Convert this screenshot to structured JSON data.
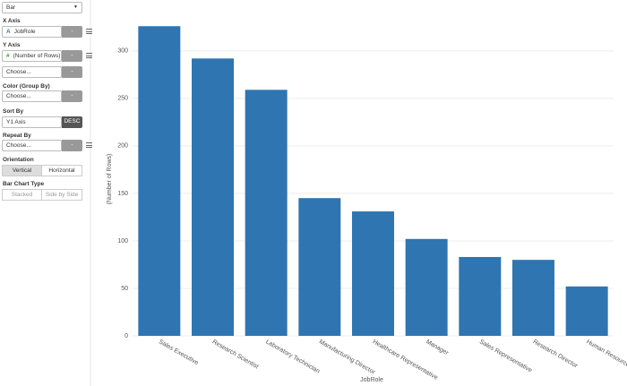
{
  "panel": {
    "chart_type": "Bar",
    "x_axis": {
      "label": "X Axis",
      "icon": "A",
      "field": "JobRole",
      "button": "-"
    },
    "y_axis": {
      "label": "Y Axis",
      "icon": "#",
      "field": "(Number of Rows)",
      "button": "-",
      "second": "Choose...",
      "second_button": "-"
    },
    "color": {
      "label": "Color (Group By)",
      "field": "Choose...",
      "button": "-"
    },
    "sort": {
      "label": "Sort By",
      "field": "Y1 Axis",
      "button": "DESC"
    },
    "repeat": {
      "label": "Repeat By",
      "field": "Choose...",
      "button": "-"
    },
    "orientation": {
      "label": "Orientation",
      "options": [
        "Vertical",
        "Horizontal"
      ]
    },
    "bar_type": {
      "label": "Bar Chart Type",
      "options": [
        "Stacked",
        "Side by Side"
      ]
    }
  },
  "chart_data": {
    "type": "bar",
    "x_label": "JobRole",
    "y_label": "(Number of Rows)",
    "categories": [
      "Sales Executive",
      "Research Scientist",
      "Laboratory Technician",
      "Manufacturing Director",
      "Healthcare Representative",
      "Manager",
      "Sales Representative",
      "Research Director",
      "Human Resources"
    ],
    "values": [
      326,
      292,
      259,
      145,
      131,
      102,
      83,
      80,
      52
    ],
    "color": "#2e75b2",
    "ylim": [
      0,
      330
    ],
    "yticks": [
      0,
      50,
      100,
      150,
      200,
      250,
      300
    ],
    "grid": true
  }
}
